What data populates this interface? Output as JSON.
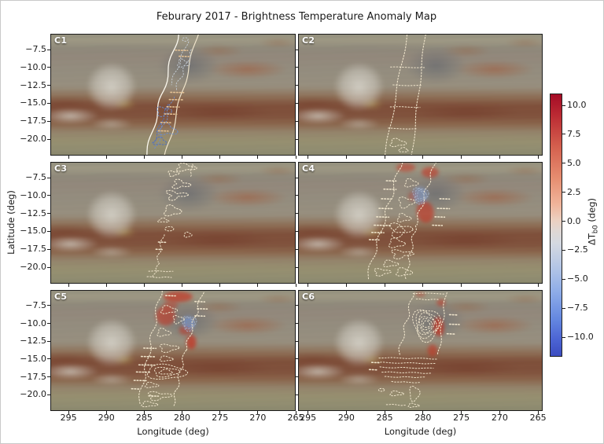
{
  "title": "Feburary 2017 - Brightness Temperature Anomaly Map",
  "axes": {
    "x_label": "Longitude (deg)",
    "y_label": "Latitude (deg)",
    "x_ticks": [
      295,
      290,
      285,
      280,
      275,
      270,
      265
    ],
    "y_ticks": [
      -7.5,
      -10.0,
      -12.5,
      -15.0,
      -17.5,
      -20.0
    ]
  },
  "panels": [
    {
      "label": "C1"
    },
    {
      "label": "C2"
    },
    {
      "label": "C3"
    },
    {
      "label": "C4"
    },
    {
      "label": "C5"
    },
    {
      "label": "C6"
    }
  ],
  "colorbar": {
    "label_prefix": "ΔT",
    "label_sub": "b0",
    "label_suffix": " (deg)",
    "ticks": [
      10.0,
      7.5,
      5.0,
      2.5,
      0.0,
      -2.5,
      -5.0,
      -7.5,
      -10.0
    ],
    "top_color": "#a50c26",
    "mid_color": "#e0d7d3",
    "bottom_color": "#3b4cc0"
  },
  "colors": {
    "contour_cream": "#efe4cb",
    "contour_white": "#fcf9ef",
    "contour_gray": "#c6ced6",
    "contour_blue": "#6d8dcb",
    "contour_blue_dark": "#4f6fc2",
    "contour_blue_light": "#aab8cf",
    "tick_tan": "#e4c194",
    "anomaly_red": "#c62f1f",
    "anomaly_blue": "#809ed8"
  },
  "chart_data": {
    "type": "heatmap",
    "title": "Feburary 2017 - Brightness Temperature Anomaly Map",
    "layout": "3 rows x 2 columns of map panels sharing longitude/latitude axes, single colorbar at right",
    "panels": [
      {
        "label": "C1",
        "overlay": "narrow tilted observation swath bounded by solid white lines; blue (negative anomaly) dotted contours in lower half, gray dotted contours in upper half"
      },
      {
        "label": "C2",
        "overlay": "narrow swath of faint cream dotted contours with ladder-like horizontal rungs"
      },
      {
        "label": "C3",
        "overlay": "sparse scattered cream dotted contour fragments along a vertical strip"
      },
      {
        "label": "C4",
        "overlay": "dense cream dotted contours over swath; red positive-anomaly shading at top and mid-right; small dense blue negative patch upper middle"
      },
      {
        "label": "C5",
        "overlay": "dense contours with strong red positive-anomaly shading at top and along right edge; blue negative oval near top; nested cream ovals lower half"
      },
      {
        "label": "C6",
        "overlay": "dense nested cream contours upper half with red positive anomalies along right edge; stacked horizontal contour lines mid-lower"
      }
    ],
    "x_axis": {
      "label": "Longitude (deg)",
      "ticks": [
        295,
        290,
        285,
        280,
        275,
        270,
        265
      ],
      "range": [
        297.4,
        264.4
      ]
    },
    "y_axis": {
      "label": "Latitude (deg)",
      "ticks": [
        -7.5,
        -10.0,
        -12.5,
        -15.0,
        -17.5,
        -20.0
      ],
      "range": [
        -5.3,
        -22.3
      ]
    },
    "colorbar": {
      "label": "ΔTb0 (deg)",
      "ticks": [
        10.0,
        7.5,
        5.0,
        2.5,
        0.0,
        -2.5,
        -5.0,
        -7.5,
        -10.0
      ],
      "range": [
        -10,
        10
      ],
      "colormap": "coolwarm (red = positive anomaly, blue = negative anomaly)"
    },
    "background": "Identical blurred visible-light Jupiter cloud map in every panel: pale Great Red Spot oval left-center, dark slate patch upper-middle, rust streaks upper-right, dark red-brown belt across lower-middle, tan zones at bottom"
  }
}
